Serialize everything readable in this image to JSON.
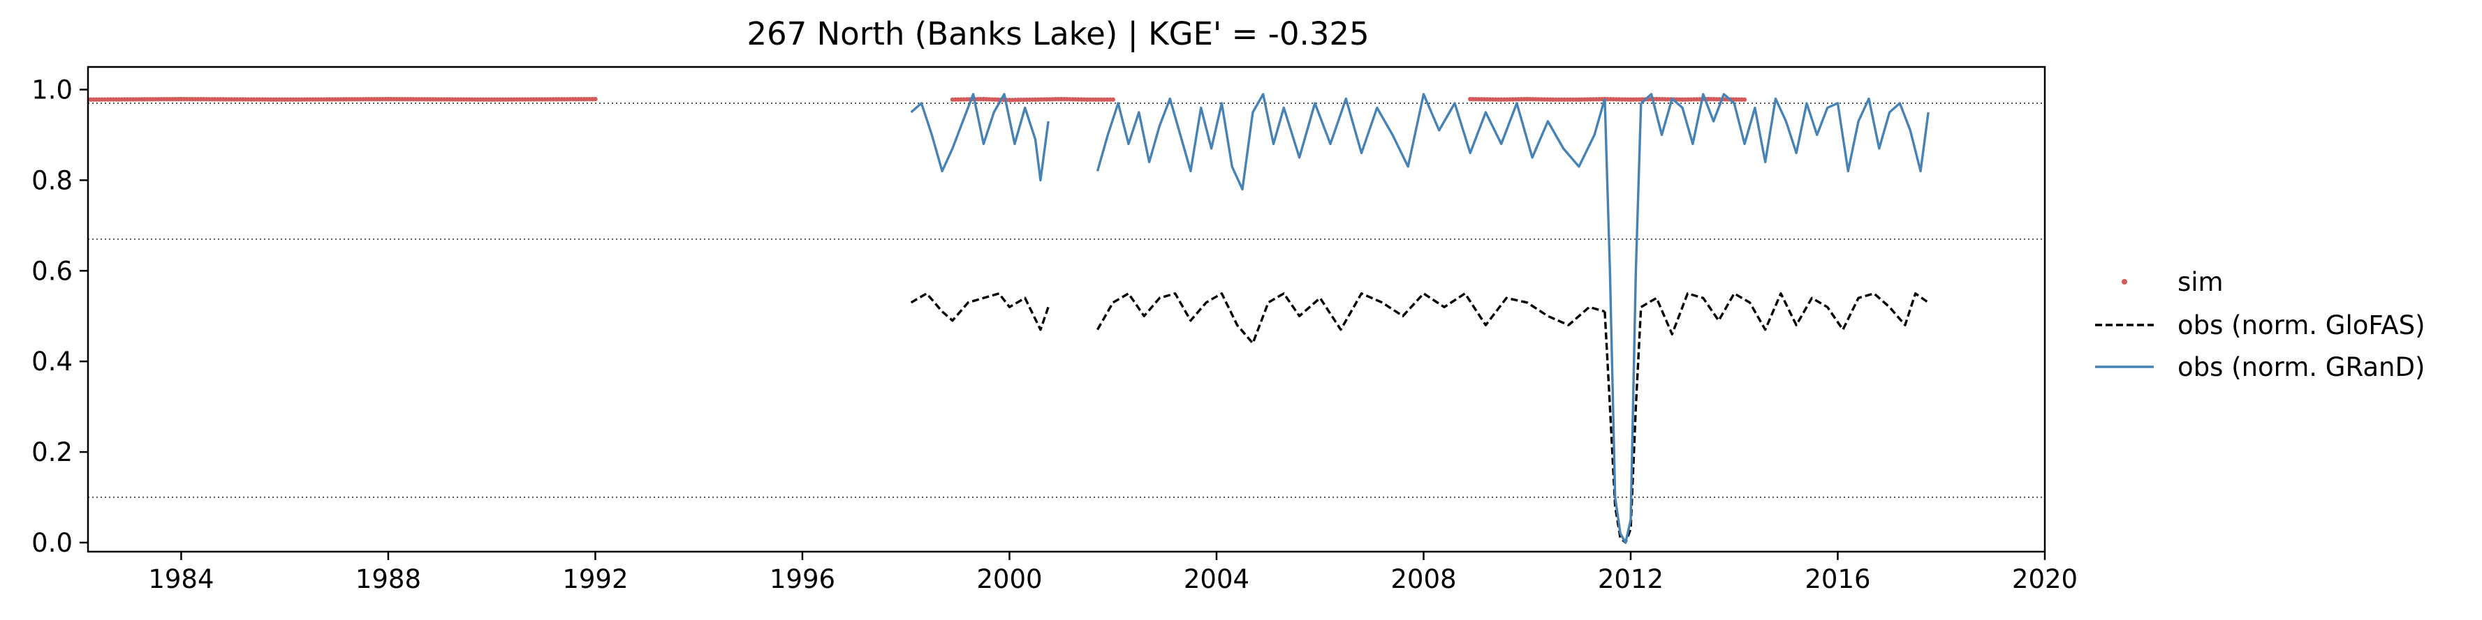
{
  "chart_data": {
    "type": "line",
    "title": "267  North (Banks Lake) | KGE' = -0.325",
    "xlabel": "",
    "ylabel": "",
    "xlim": [
      1982.2,
      2020.0
    ],
    "ylim": [
      -0.02,
      1.05
    ],
    "x_ticks": [
      "1984",
      "1988",
      "1992",
      "1996",
      "2000",
      "2004",
      "2008",
      "2012",
      "2016",
      "2020"
    ],
    "y_ticks": [
      "0.0",
      "0.2",
      "0.4",
      "0.6",
      "0.8",
      "1.0"
    ],
    "grid": false,
    "legend_position": "right, outside plot",
    "reference_lines": [
      0.97,
      0.67,
      0.1
    ],
    "series": [
      {
        "name": "sim",
        "style": "points",
        "color": "#d45a5a",
        "segments": [
          {
            "x": [
              1982.2,
              1984,
              1986,
              1988,
              1990,
              1992.0
            ],
            "y": [
              0.978,
              0.979,
              0.978,
              0.979,
              0.978,
              0.979
            ]
          },
          {
            "x": [
              1998.9,
              1999.5,
              2000.0,
              2000.5,
              2001.0,
              2001.5,
              2002.0
            ],
            "y": [
              0.978,
              0.979,
              0.977,
              0.978,
              0.979,
              0.978,
              0.978
            ]
          },
          {
            "x": [
              2008.9,
              2009.5,
              2010.0,
              2010.5,
              2011.0,
              2011.5,
              2012.0,
              2012.5,
              2013.0,
              2013.5,
              2014.2
            ],
            "y": [
              0.979,
              0.978,
              0.979,
              0.978,
              0.978,
              0.979,
              0.978,
              0.979,
              0.978,
              0.979,
              0.978
            ]
          }
        ]
      },
      {
        "name": "obs (norm. GloFAS)",
        "style": "dashed",
        "color": "#000000",
        "segments": [
          {
            "x": [
              1998.1,
              1998.4,
              1998.7,
              1998.9,
              1999.2,
              1999.5,
              1999.8,
              2000.0,
              2000.3,
              2000.6,
              2000.75
            ],
            "y": [
              0.53,
              0.55,
              0.51,
              0.49,
              0.53,
              0.54,
              0.55,
              0.52,
              0.54,
              0.47,
              0.52
            ]
          },
          {
            "x": [
              2001.7,
              2002.0,
              2002.3,
              2002.6,
              2002.9,
              2003.2,
              2003.5,
              2003.8,
              2004.1,
              2004.4,
              2004.7,
              2005.0,
              2005.3,
              2005.6,
              2006.0,
              2006.4,
              2006.8,
              2007.2,
              2007.6,
              2008.0,
              2008.4,
              2008.8,
              2009.2,
              2009.6,
              2010.0,
              2010.4,
              2010.8,
              2011.2,
              2011.5
            ],
            "y": [
              0.47,
              0.53,
              0.55,
              0.5,
              0.54,
              0.55,
              0.49,
              0.53,
              0.55,
              0.48,
              0.44,
              0.53,
              0.55,
              0.5,
              0.54,
              0.47,
              0.55,
              0.53,
              0.5,
              0.55,
              0.52,
              0.55,
              0.48,
              0.54,
              0.53,
              0.5,
              0.48,
              0.52,
              0.51
            ]
          },
          {
            "x": [
              2011.5,
              2011.6,
              2011.7,
              2011.8,
              2011.9,
              2012.0,
              2012.1,
              2012.2
            ],
            "y": [
              0.51,
              0.3,
              0.08,
              0.01,
              0.0,
              0.03,
              0.3,
              0.52
            ]
          },
          {
            "x": [
              2012.2,
              2012.5,
              2012.8,
              2013.1,
              2013.4,
              2013.7,
              2014.0,
              2014.3,
              2014.6,
              2014.9,
              2015.2,
              2015.5,
              2015.8,
              2016.1,
              2016.4,
              2016.7,
              2017.0,
              2017.3,
              2017.5,
              2017.75
            ],
            "y": [
              0.52,
              0.54,
              0.46,
              0.55,
              0.54,
              0.49,
              0.55,
              0.53,
              0.47,
              0.55,
              0.48,
              0.54,
              0.52,
              0.47,
              0.54,
              0.55,
              0.52,
              0.48,
              0.55,
              0.53
            ]
          }
        ]
      },
      {
        "name": "obs (norm. GRanD)",
        "style": "solid",
        "color": "#4682b4",
        "segments": [
          {
            "x": [
              1998.1,
              1998.3,
              1998.5,
              1998.7,
              1998.9,
              1999.1,
              1999.3,
              1999.5,
              1999.7,
              1999.9,
              2000.1,
              2000.3,
              2000.5,
              2000.6,
              2000.75
            ],
            "y": [
              0.95,
              0.97,
              0.9,
              0.82,
              0.87,
              0.93,
              0.99,
              0.88,
              0.95,
              0.99,
              0.88,
              0.96,
              0.89,
              0.8,
              0.93
            ]
          },
          {
            "x": [
              2001.7,
              2001.9,
              2002.1,
              2002.3,
              2002.5,
              2002.7,
              2002.9,
              2003.1,
              2003.3,
              2003.5,
              2003.7,
              2003.9,
              2004.1,
              2004.3,
              2004.5,
              2004.7,
              2004.9,
              2005.1,
              2005.3,
              2005.6,
              2005.9,
              2006.2,
              2006.5,
              2006.8,
              2007.1,
              2007.4,
              2007.7,
              2008.0,
              2008.3,
              2008.6,
              2008.9,
              2009.2,
              2009.5,
              2009.8,
              2010.1,
              2010.4,
              2010.7,
              2011.0,
              2011.3,
              2011.5
            ],
            "y": [
              0.82,
              0.9,
              0.97,
              0.88,
              0.95,
              0.84,
              0.92,
              0.98,
              0.9,
              0.82,
              0.96,
              0.87,
              0.97,
              0.83,
              0.78,
              0.95,
              0.99,
              0.88,
              0.96,
              0.85,
              0.97,
              0.88,
              0.98,
              0.86,
              0.96,
              0.9,
              0.83,
              0.99,
              0.91,
              0.97,
              0.86,
              0.95,
              0.88,
              0.97,
              0.85,
              0.93,
              0.87,
              0.83,
              0.9,
              0.98
            ]
          },
          {
            "x": [
              2011.5,
              2011.6,
              2011.7,
              2011.8,
              2011.9,
              2012.0,
              2012.1,
              2012.2
            ],
            "y": [
              0.98,
              0.6,
              0.1,
              0.02,
              0.0,
              0.05,
              0.6,
              0.97
            ]
          },
          {
            "x": [
              2012.2,
              2012.4,
              2012.6,
              2012.8,
              2013.0,
              2013.2,
              2013.4,
              2013.6,
              2013.8,
              2014.0,
              2014.2,
              2014.4,
              2014.6,
              2014.8,
              2015.0,
              2015.2,
              2015.4,
              2015.6,
              2015.8,
              2016.0,
              2016.2,
              2016.4,
              2016.6,
              2016.8,
              2017.0,
              2017.2,
              2017.4,
              2017.6,
              2017.75
            ],
            "y": [
              0.97,
              0.99,
              0.9,
              0.98,
              0.96,
              0.88,
              0.99,
              0.93,
              0.99,
              0.97,
              0.88,
              0.96,
              0.84,
              0.98,
              0.93,
              0.86,
              0.97,
              0.9,
              0.96,
              0.97,
              0.82,
              0.93,
              0.98,
              0.87,
              0.95,
              0.97,
              0.91,
              0.82,
              0.95
            ]
          }
        ]
      }
    ]
  }
}
